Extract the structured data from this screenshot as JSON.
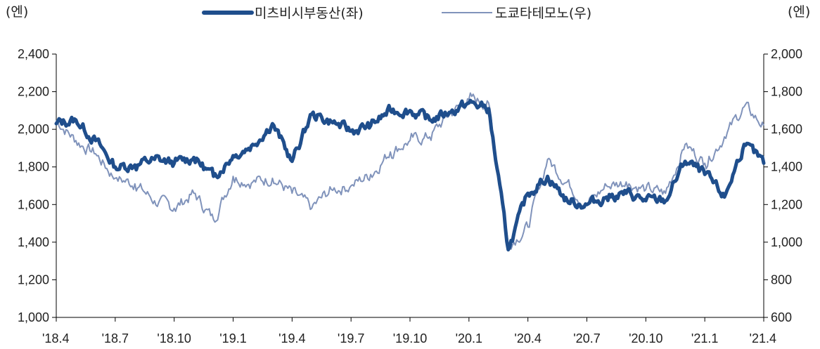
{
  "chart_data": {
    "type": "line",
    "units": {
      "left": "(엔)",
      "right": "(엔)"
    },
    "legend": {
      "position": "top-center"
    },
    "grid": false,
    "x": {
      "range": [
        "'18.4",
        "'21.4"
      ],
      "tick_labels": [
        "'18.4",
        "'18.7",
        "'18.10",
        "'19.1",
        "'19.4",
        "'19.7",
        "'19.10",
        "'20.1",
        "'20.4",
        "'20.7",
        "'20.10",
        "'21.1",
        "'21.4"
      ]
    },
    "y_left": {
      "min": 1000,
      "max": 2400,
      "ticks": [
        1000,
        1200,
        1400,
        1600,
        1800,
        2000,
        2200,
        2400
      ],
      "tick_labels": [
        "1,000",
        "1,200",
        "1,400",
        "1,600",
        "1,800",
        "2,000",
        "2,200",
        "2,400"
      ]
    },
    "y_right": {
      "min": 600,
      "max": 2000,
      "ticks": [
        600,
        800,
        1000,
        1200,
        1400,
        1600,
        1800,
        2000
      ],
      "tick_labels": [
        "600",
        "800",
        "1,000",
        "1,200",
        "1,400",
        "1,600",
        "1,800",
        "2,000"
      ]
    },
    "series": [
      {
        "name": "미츠비시부동산(좌)",
        "axis": "left",
        "color": "#1f4e8c",
        "x": [
          "'18.4",
          "'18.5",
          "'18.6",
          "'18.7",
          "'18.8",
          "'18.9",
          "'18.10",
          "'18.11",
          "'18.12",
          "'19.1",
          "'19.2",
          "'19.3",
          "'19.4",
          "'19.5",
          "'19.6",
          "'19.7",
          "'19.8",
          "'19.9",
          "'19.10",
          "'19.11",
          "'19.12",
          "'20.1",
          "'20.2",
          "'20.3",
          "'20.4",
          "'20.5",
          "'20.6",
          "'20.7",
          "'20.8",
          "'20.9",
          "'20.10",
          "'20.11",
          "'20.12",
          "'21.1",
          "'21.2",
          "'21.3",
          "'21.4"
        ],
        "values": [
          2030,
          2050,
          1940,
          1800,
          1810,
          1840,
          1820,
          1850,
          1750,
          1860,
          1920,
          2030,
          1830,
          2080,
          2040,
          1990,
          2020,
          2100,
          2100,
          2050,
          2090,
          2140,
          2110,
          1360,
          1660,
          1750,
          1620,
          1600,
          1640,
          1660,
          1620,
          1620,
          1830,
          1760,
          1640,
          1920,
          1820
        ]
      },
      {
        "name": "도쿄타테모노(우)",
        "axis": "right",
        "color": "#8093bb",
        "x": [
          "'18.4",
          "'18.5",
          "'18.6",
          "'18.7",
          "'18.8",
          "'18.9",
          "'18.10",
          "'18.11",
          "'18.12",
          "'19.1",
          "'19.2",
          "'19.3",
          "'19.4",
          "'19.5",
          "'19.6",
          "'19.7",
          "'19.8",
          "'19.9",
          "'19.10",
          "'19.11",
          "'19.12",
          "'20.1",
          "'20.2",
          "'20.3",
          "'20.4",
          "'20.5",
          "'20.6",
          "'20.7",
          "'20.8",
          "'20.9",
          "'20.10",
          "'20.11",
          "'20.12",
          "'21.1",
          "'21.2",
          "'21.3",
          "'21.4"
        ],
        "values": [
          1650,
          1540,
          1470,
          1340,
          1310,
          1220,
          1180,
          1260,
          1120,
          1350,
          1320,
          1340,
          1260,
          1180,
          1280,
          1300,
          1360,
          1480,
          1540,
          1560,
          1680,
          1760,
          1740,
          990,
          1080,
          1440,
          1320,
          1200,
          1300,
          1320,
          1280,
          1260,
          1520,
          1420,
          1560,
          1720,
          1620
        ]
      }
    ]
  }
}
